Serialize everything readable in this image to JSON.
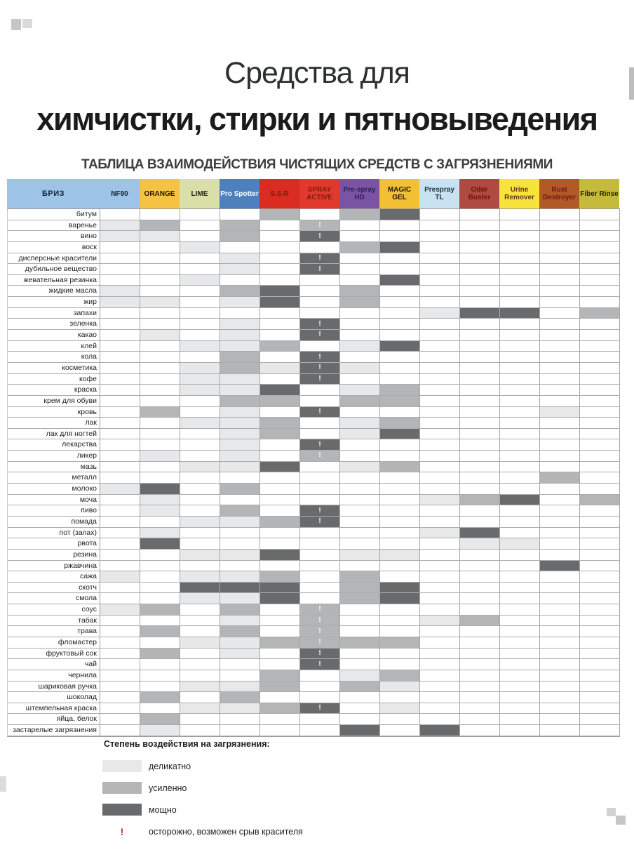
{
  "title": {
    "line1": "Средства для",
    "line2": "химчистки, стирки и пятновыведения",
    "subtitle": "ТАБЛИЦА ВЗАИМОДЕЙСТВИЯ ЧИСТЯЩИХ СРЕДСТВ С ЗАГРЯЗНЕНИЯМИ"
  },
  "table": {
    "corner": {
      "label": "БРИЗ",
      "bg": "#9dc3e6",
      "fg": "#10243a"
    },
    "palette": {
      "1": "#e7e8ea",
      "2": "#b3b5b7",
      "3": "#696a6c",
      "warn_fg": "#ffffff"
    },
    "products": [
      {
        "name": "NF90",
        "bg": "#9dc3e6",
        "fg": "#10243a"
      },
      {
        "name": "ORANGE",
        "bg": "#f6c244",
        "fg": "#231503"
      },
      {
        "name": "LIME",
        "bg": "#d9dfa9",
        "fg": "#222814"
      },
      {
        "name": "Pro Spotter",
        "bg": "#4d80bd",
        "fg": "#ffffff"
      },
      {
        "name": "S.S.R",
        "bg": "#da2c20",
        "fg": "#7e1a10"
      },
      {
        "name": "SPRAY ACTIVE",
        "bg": "#e13a2c",
        "fg": "#7e1a10"
      },
      {
        "name": "Pre-spray HD",
        "bg": "#7a53a4",
        "fg": "#2e2050"
      },
      {
        "name": "MAGIC GEL",
        "bg": "#f2c035",
        "fg": "#231503"
      },
      {
        "name": "Prespray TL",
        "bg": "#c8e2f2",
        "fg": "#16303f"
      },
      {
        "name": "Odor Buster",
        "bg": "#ae4a41",
        "fg": "#6d130c"
      },
      {
        "name": "Urine Remover",
        "bg": "#f6e33c",
        "fg": "#6a3413"
      },
      {
        "name": "Rust Destroyer",
        "bg": "#b15a28",
        "fg": "#74170e"
      },
      {
        "name": "Fiber Rinse",
        "bg": "#c6ba3d",
        "fg": "#26220a"
      }
    ],
    "rows": [
      {
        "label": "битум",
        "cells": [
          "",
          "",
          "",
          "",
          "2",
          "",
          "2",
          "3",
          "",
          "",
          "",
          "",
          ""
        ]
      },
      {
        "label": "варенье",
        "cells": [
          "1",
          "2",
          "",
          "2",
          "",
          "2!",
          "",
          "",
          "",
          "",
          "",
          "",
          ""
        ]
      },
      {
        "label": "вино",
        "cells": [
          "1",
          "1",
          "",
          "2",
          "",
          "3!",
          "",
          "",
          "",
          "",
          "",
          "",
          ""
        ]
      },
      {
        "label": "воск",
        "cells": [
          "",
          "",
          "1",
          "",
          "",
          "",
          "2",
          "3",
          "",
          "",
          "",
          "",
          ""
        ]
      },
      {
        "label": "дисперсные красители",
        "cells": [
          "",
          "",
          "",
          "1",
          "",
          "3!",
          "",
          "",
          "",
          "",
          "",
          "",
          ""
        ]
      },
      {
        "label": "дубильное вещество",
        "cells": [
          "",
          "",
          "",
          "1",
          "",
          "3!",
          "",
          "",
          "",
          "",
          "",
          "",
          ""
        ]
      },
      {
        "label": "жевательная резинка",
        "cells": [
          "",
          "",
          "1",
          "",
          "",
          "",
          "",
          "3",
          "",
          "",
          "",
          "",
          ""
        ]
      },
      {
        "label": "жидкие масла",
        "cells": [
          "1",
          "",
          "",
          "2",
          "3",
          "",
          "2",
          "",
          "",
          "",
          "",
          "",
          ""
        ]
      },
      {
        "label": "жир",
        "cells": [
          "1",
          "1",
          "",
          "1",
          "3",
          "",
          "2",
          "",
          "",
          "",
          "",
          "",
          ""
        ]
      },
      {
        "label": "запахи",
        "cells": [
          "",
          "",
          "",
          "",
          "",
          "",
          "",
          "",
          "1",
          "3",
          "3",
          "",
          "2"
        ]
      },
      {
        "label": "зеленка",
        "cells": [
          "",
          "",
          "",
          "1",
          "",
          "3!",
          "",
          "",
          "",
          "",
          "",
          "",
          ""
        ]
      },
      {
        "label": "какао",
        "cells": [
          "",
          "1",
          "",
          "1",
          "",
          "3!",
          "",
          "",
          "",
          "",
          "",
          "",
          ""
        ]
      },
      {
        "label": "клей",
        "cells": [
          "",
          "",
          "1",
          "1",
          "2",
          "",
          "1",
          "3",
          "",
          "",
          "",
          "",
          ""
        ]
      },
      {
        "label": "кола",
        "cells": [
          "",
          "",
          "",
          "2",
          "",
          "3!",
          "",
          "",
          "",
          "",
          "",
          "",
          ""
        ]
      },
      {
        "label": "косметика",
        "cells": [
          "",
          "",
          "1",
          "2",
          "1",
          "3!",
          "1",
          "",
          "",
          "",
          "",
          "",
          ""
        ]
      },
      {
        "label": "кофе",
        "cells": [
          "",
          "",
          "1",
          "1",
          "",
          "3!",
          "",
          "",
          "",
          "",
          "",
          "",
          ""
        ]
      },
      {
        "label": "краска",
        "cells": [
          "",
          "",
          "1",
          "1",
          "3",
          "",
          "1",
          "2",
          "",
          "",
          "",
          "",
          ""
        ]
      },
      {
        "label": "крем для обуви",
        "cells": [
          "",
          "",
          "",
          "2",
          "2",
          "",
          "2",
          "2",
          "",
          "",
          "",
          "",
          ""
        ]
      },
      {
        "label": "кровь",
        "cells": [
          "",
          "2",
          "",
          "1",
          "",
          "3!",
          "",
          "",
          "",
          "",
          "",
          "1",
          ""
        ]
      },
      {
        "label": "лак",
        "cells": [
          "",
          "",
          "1",
          "1",
          "2",
          "",
          "1",
          "2",
          "",
          "",
          "",
          "",
          ""
        ]
      },
      {
        "label": "лак для ногтей",
        "cells": [
          "",
          "",
          "",
          "1",
          "2",
          "",
          "1",
          "3",
          "",
          "",
          "",
          "",
          ""
        ]
      },
      {
        "label": "лекарства",
        "cells": [
          "",
          "",
          "",
          "1",
          "",
          "3!",
          "",
          "",
          "",
          "",
          "",
          "",
          ""
        ]
      },
      {
        "label": "ликер",
        "cells": [
          "",
          "1",
          "",
          "1",
          "",
          "2!",
          "",
          "",
          "",
          "",
          "",
          "",
          ""
        ]
      },
      {
        "label": "мазь",
        "cells": [
          "",
          "",
          "1",
          "1",
          "3",
          "",
          "1",
          "2",
          "",
          "",
          "",
          "",
          ""
        ]
      },
      {
        "label": "металл",
        "cells": [
          "",
          "",
          "",
          "",
          "",
          "",
          "",
          "",
          "",
          "",
          "",
          "2",
          ""
        ]
      },
      {
        "label": "молоко",
        "cells": [
          "1",
          "3",
          "",
          "2",
          "",
          "",
          "",
          "",
          "",
          "",
          "",
          "",
          ""
        ]
      },
      {
        "label": "моча",
        "cells": [
          "",
          "1",
          "",
          "",
          "",
          "",
          "",
          "",
          "1",
          "2",
          "3",
          "",
          "2"
        ]
      },
      {
        "label": "пиво",
        "cells": [
          "",
          "1",
          "",
          "2",
          "",
          "3!",
          "",
          "",
          "",
          "",
          "",
          "",
          ""
        ]
      },
      {
        "label": "помада",
        "cells": [
          "",
          "",
          "1",
          "1",
          "2",
          "3!",
          "",
          "",
          "",
          "",
          "",
          "",
          ""
        ]
      },
      {
        "label": "пот (запах)",
        "cells": [
          "",
          "1",
          "",
          "",
          "",
          "",
          "",
          "",
          "1",
          "3",
          "",
          "",
          ""
        ]
      },
      {
        "label": "рвота",
        "cells": [
          "",
          "3",
          "",
          "",
          "",
          "",
          "",
          "",
          "",
          "1",
          "1",
          "",
          ""
        ]
      },
      {
        "label": "резина",
        "cells": [
          "",
          "",
          "1",
          "1",
          "3",
          "",
          "1",
          "1",
          "",
          "",
          "",
          "",
          ""
        ]
      },
      {
        "label": "ржавчина",
        "cells": [
          "",
          "",
          "",
          "",
          "",
          "",
          "",
          "",
          "",
          "",
          "",
          "3",
          ""
        ]
      },
      {
        "label": "сажа",
        "cells": [
          "1",
          "",
          "1",
          "1",
          "2",
          "",
          "2",
          "",
          "",
          "",
          "",
          "",
          ""
        ]
      },
      {
        "label": "скотч",
        "cells": [
          "",
          "",
          "3",
          "3",
          "3",
          "",
          "2",
          "3",
          "",
          "",
          "",
          "",
          ""
        ]
      },
      {
        "label": "смола",
        "cells": [
          "",
          "",
          "1",
          "1",
          "3",
          "",
          "2",
          "3",
          "",
          "",
          "",
          "",
          ""
        ]
      },
      {
        "label": "соус",
        "cells": [
          "1",
          "2",
          "",
          "2",
          "",
          "2!",
          "",
          "",
          "",
          "",
          "",
          "",
          ""
        ]
      },
      {
        "label": "табак",
        "cells": [
          "",
          "",
          "",
          "1",
          "",
          "2!",
          "",
          "",
          "1",
          "2",
          "",
          "",
          ""
        ]
      },
      {
        "label": "трава",
        "cells": [
          "",
          "2",
          "",
          "2",
          "",
          "2!",
          "",
          "",
          "",
          "",
          "",
          "",
          ""
        ]
      },
      {
        "label": "фломастер",
        "cells": [
          "",
          "",
          "1",
          "1",
          "2",
          "2!",
          "2",
          "2",
          "",
          "",
          "",
          "",
          ""
        ]
      },
      {
        "label": "фруктовый сок",
        "cells": [
          "",
          "2",
          "",
          "1",
          "",
          "3!",
          "",
          "",
          "",
          "",
          "",
          "",
          ""
        ]
      },
      {
        "label": "чай",
        "cells": [
          "",
          "",
          "",
          "",
          "",
          "3!",
          "",
          "",
          "",
          "",
          "",
          "",
          ""
        ]
      },
      {
        "label": "чернила",
        "cells": [
          "",
          "",
          "",
          "",
          "2",
          "",
          "1",
          "2",
          "",
          "",
          "",
          "",
          ""
        ]
      },
      {
        "label": "шариковая ручка",
        "cells": [
          "",
          "",
          "1",
          "1",
          "2",
          "",
          "2",
          "1",
          "",
          "",
          "",
          "",
          ""
        ]
      },
      {
        "label": "шоколад",
        "cells": [
          "",
          "2",
          "",
          "2",
          "",
          "",
          "",
          "",
          "",
          "",
          "",
          "",
          ""
        ]
      },
      {
        "label": "штемпельная краска",
        "cells": [
          "",
          "",
          "1",
          "1",
          "2",
          "3!",
          "",
          "1",
          "",
          "",
          "",
          "",
          ""
        ]
      },
      {
        "label": "яйца, белок",
        "cells": [
          "",
          "2",
          "",
          "",
          "",
          "",
          "",
          "",
          "",
          "",
          "",
          "",
          ""
        ]
      },
      {
        "label": "застарелые загрязнения",
        "cells": [
          "",
          "1",
          "",
          "",
          "",
          "",
          "3",
          "",
          "3",
          "",
          "",
          "",
          ""
        ]
      }
    ]
  },
  "legend": {
    "title": "Степень воздействия на загрязнения:",
    "items": [
      {
        "level": "1",
        "label": "деликатно"
      },
      {
        "level": "2",
        "label": "усиленно"
      },
      {
        "level": "3",
        "label": "мощно"
      }
    ],
    "warning": {
      "symbol": "!",
      "label": "осторожно, возможен срыв красителя",
      "color": "#c0271b"
    }
  }
}
